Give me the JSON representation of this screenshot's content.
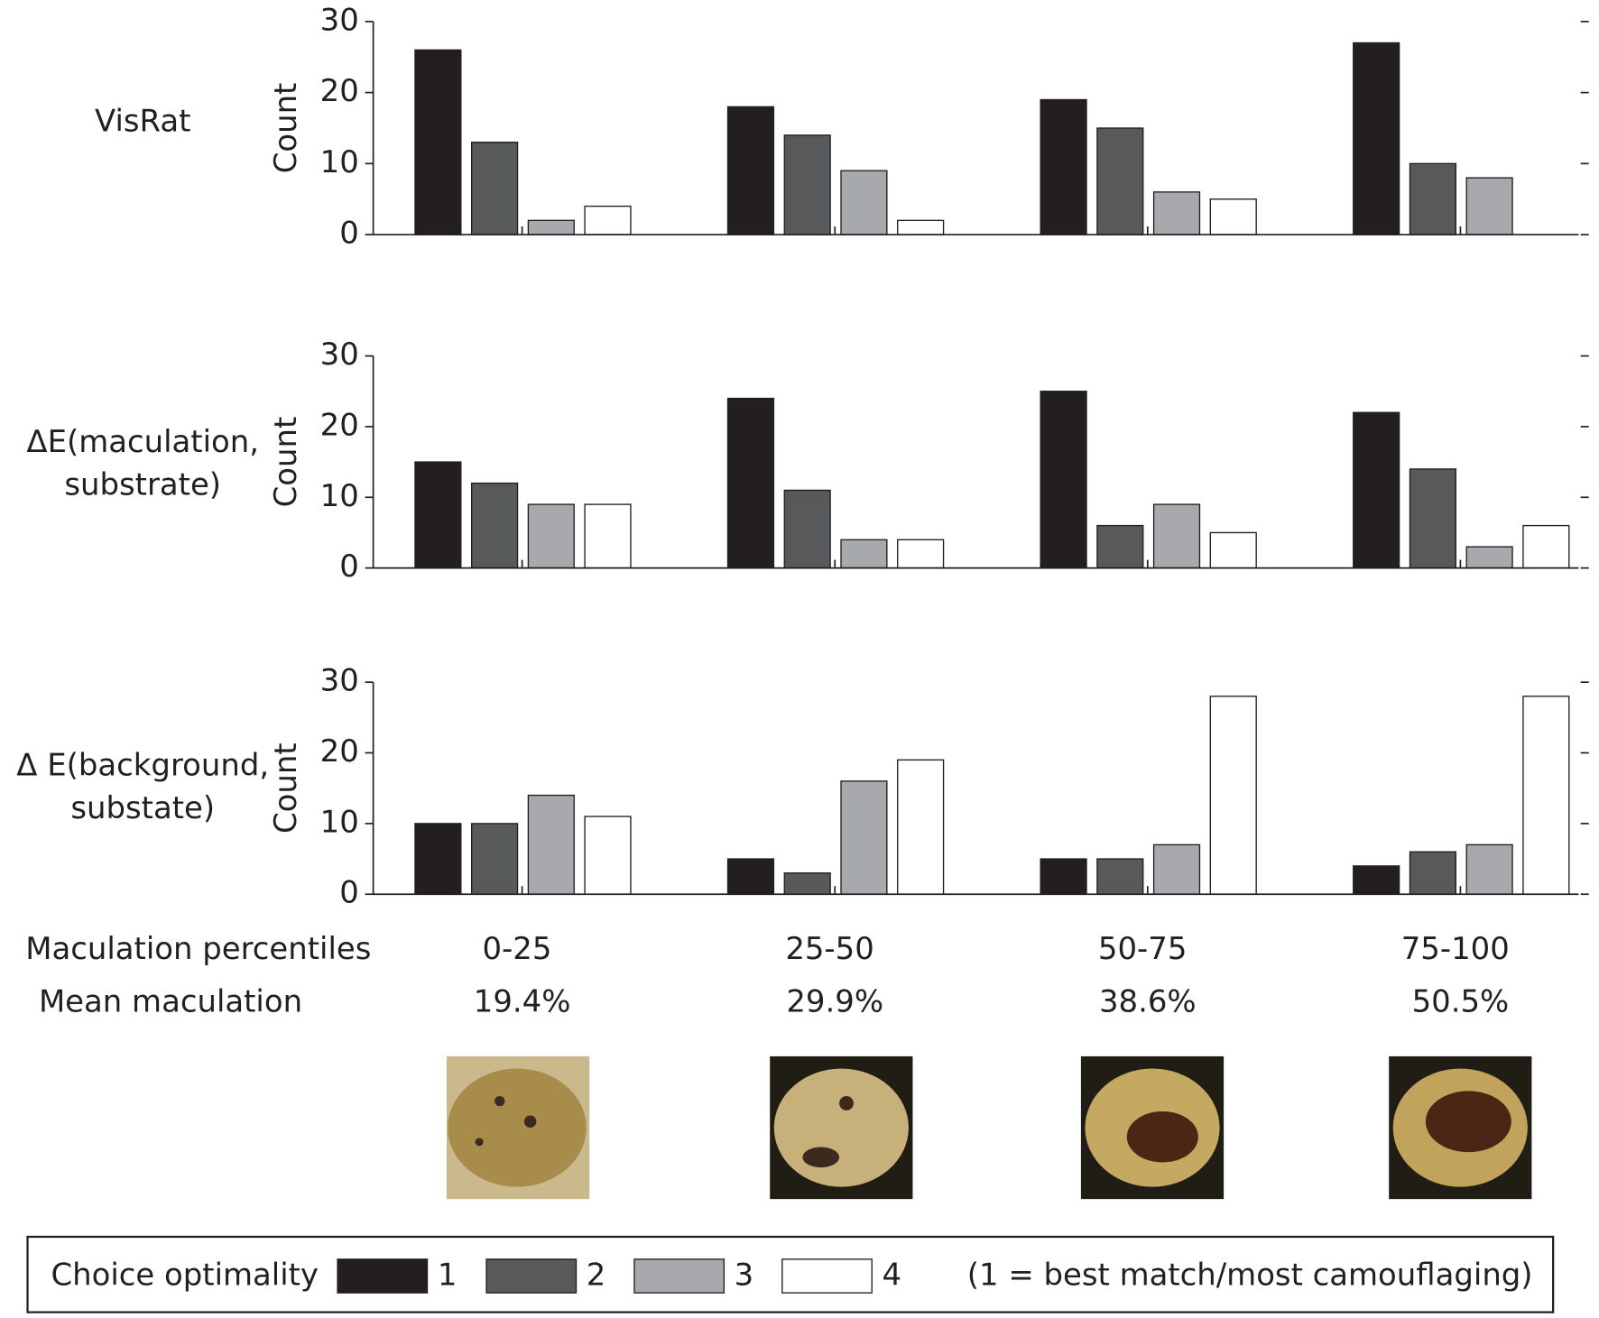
{
  "chart_data": [
    {
      "type": "bar",
      "title": [
        "VisRat"
      ],
      "y_label": "Count",
      "ylim": [
        0,
        30
      ],
      "yticks": [
        0,
        10,
        20,
        30
      ],
      "series": [
        {
          "values": [
            26,
            18,
            19,
            27
          ]
        },
        {
          "values": [
            13,
            14,
            15,
            10
          ]
        },
        {
          "values": [
            2,
            9,
            6,
            8
          ]
        },
        {
          "values": [
            4,
            2,
            5,
            0
          ]
        }
      ]
    },
    {
      "type": "bar",
      "title": [
        "ΔE(maculation,",
        "substrate)"
      ],
      "y_label": "Count",
      "ylim": [
        0,
        30
      ],
      "yticks": [
        0,
        10,
        20,
        30
      ],
      "series": [
        {
          "values": [
            15,
            24,
            25,
            22
          ]
        },
        {
          "values": [
            12,
            11,
            6,
            14
          ]
        },
        {
          "values": [
            9,
            4,
            9,
            3
          ]
        },
        {
          "values": [
            9,
            4,
            5,
            6
          ]
        }
      ]
    },
    {
      "type": "bar",
      "title": [
        "Δ E(background,",
        "substate)"
      ],
      "y_label": "Count",
      "ylim": [
        0,
        30
      ],
      "yticks": [
        0,
        10,
        20,
        30
      ],
      "series": [
        {
          "values": [
            10,
            5,
            5,
            4
          ]
        },
        {
          "values": [
            10,
            3,
            5,
            6
          ]
        },
        {
          "values": [
            14,
            16,
            7,
            7
          ]
        },
        {
          "values": [
            11,
            19,
            28,
            28
          ]
        }
      ]
    }
  ],
  "x_axis": {
    "label": "Maculation percentiles",
    "categories": [
      "0-25",
      "25-50",
      "50-75",
      "75-100"
    ]
  },
  "mean_maculation": {
    "label": "Mean maculation",
    "values": [
      19.4,
      29.9,
      38.6,
      50.5
    ],
    "value_labels": [
      "19.4%",
      "29.9%",
      "38.6%",
      "50.5%"
    ]
  },
  "legend": {
    "title": "Choice optimality",
    "note": "(1 = best match/most camouflaging)",
    "items": [
      {
        "name": "1",
        "color": "#231f20"
      },
      {
        "name": "2",
        "color": "#58595b"
      },
      {
        "name": "3",
        "color": "#a7a9ac"
      },
      {
        "name": "4",
        "color": "#ffffff"
      }
    ]
  }
}
